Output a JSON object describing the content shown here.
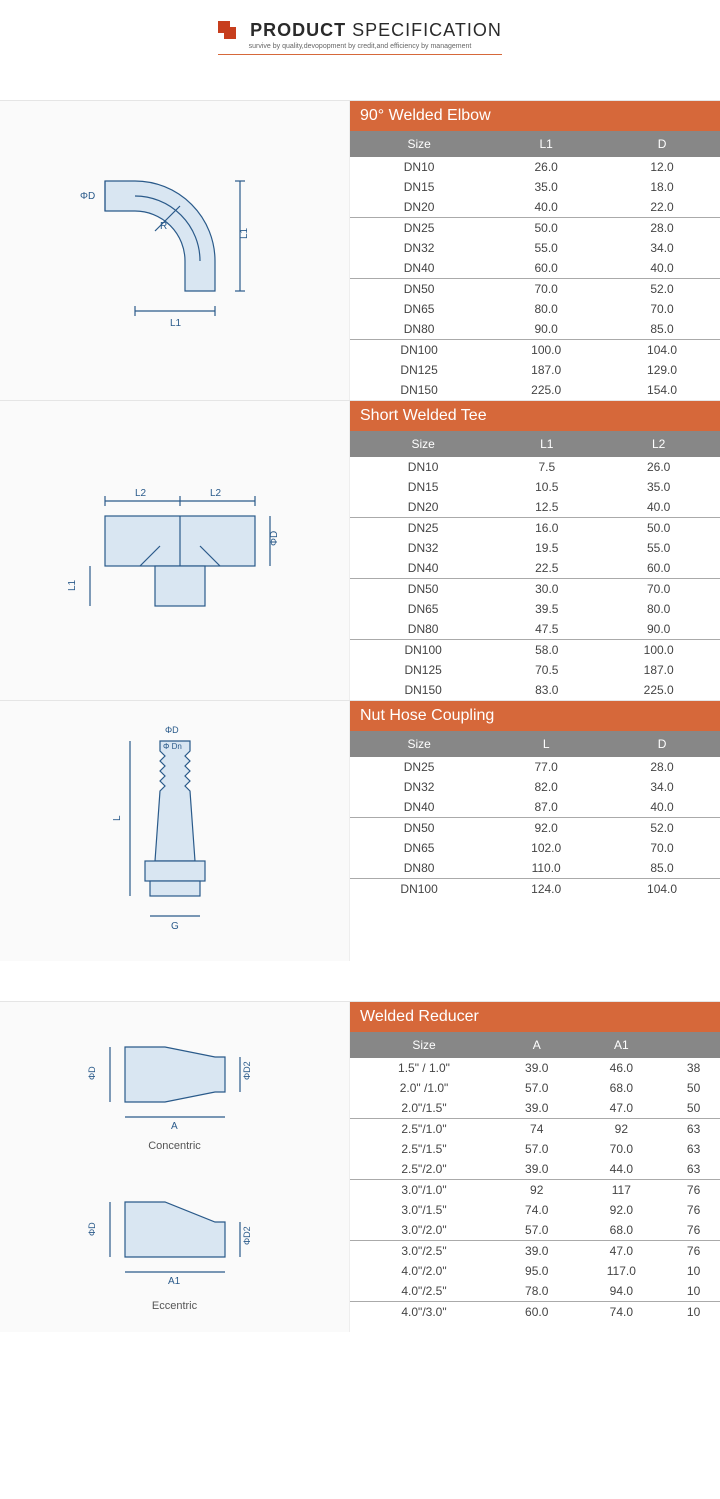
{
  "header": {
    "title_prefix": "PRODUCT",
    "title_suffix": "SPECIFICATION",
    "subtitle": "survive by quality,devopopment by credit,and efficiency by management"
  },
  "sections": [
    {
      "title": "90° Welded Elbow",
      "columns": [
        "Size",
        "L1",
        "D"
      ],
      "groups": [
        [
          [
            "DN10",
            "26.0",
            "12.0"
          ],
          [
            "DN15",
            "35.0",
            "18.0"
          ],
          [
            "DN20",
            "40.0",
            "22.0"
          ]
        ],
        [
          [
            "DN25",
            "50.0",
            "28.0"
          ],
          [
            "DN32",
            "55.0",
            "34.0"
          ],
          [
            "DN40",
            "60.0",
            "40.0"
          ]
        ],
        [
          [
            "DN50",
            "70.0",
            "52.0"
          ],
          [
            "DN65",
            "80.0",
            "70.0"
          ],
          [
            "DN80",
            "90.0",
            "85.0"
          ]
        ],
        [
          [
            "DN100",
            "100.0",
            "104.0"
          ],
          [
            "DN125",
            "187.0",
            "129.0"
          ],
          [
            "DN150",
            "225.0",
            "154.0"
          ]
        ]
      ]
    },
    {
      "title": "Short Welded Tee",
      "columns": [
        "Size",
        "L1",
        "L2"
      ],
      "groups": [
        [
          [
            "DN10",
            "7.5",
            "26.0"
          ],
          [
            "DN15",
            "10.5",
            "35.0"
          ],
          [
            "DN20",
            "12.5",
            "40.0"
          ]
        ],
        [
          [
            "DN25",
            "16.0",
            "50.0"
          ],
          [
            "DN32",
            "19.5",
            "55.0"
          ],
          [
            "DN40",
            "22.5",
            "60.0"
          ]
        ],
        [
          [
            "DN50",
            "30.0",
            "70.0"
          ],
          [
            "DN65",
            "39.5",
            "80.0"
          ],
          [
            "DN80",
            "47.5",
            "90.0"
          ]
        ],
        [
          [
            "DN100",
            "58.0",
            "100.0"
          ],
          [
            "DN125",
            "70.5",
            "187.0"
          ],
          [
            "DN150",
            "83.0",
            "225.0"
          ]
        ]
      ]
    },
    {
      "title": "Nut Hose Coupling",
      "columns": [
        "Size",
        "L",
        "D"
      ],
      "groups": [
        [
          [
            "DN25",
            "77.0",
            "28.0"
          ],
          [
            "DN32",
            "82.0",
            "34.0"
          ],
          [
            "DN40",
            "87.0",
            "40.0"
          ]
        ],
        [
          [
            "DN50",
            "92.0",
            "52.0"
          ],
          [
            "DN65",
            "102.0",
            "70.0"
          ],
          [
            "DN80",
            "110.0",
            "85.0"
          ]
        ],
        [
          [
            "DN100",
            "124.0",
            "104.0"
          ]
        ]
      ]
    },
    {
      "title": "Welded Reducer",
      "columns": [
        "Size",
        "A",
        "A1",
        ""
      ],
      "groups": [
        [
          [
            "1.5\"  / 1.0\"",
            "39.0",
            "46.0",
            "38"
          ],
          [
            "2.0\" /1.0\"",
            "57.0",
            "68.0",
            "50"
          ],
          [
            "2.0\"/1.5\"",
            "39.0",
            "47.0",
            "50"
          ]
        ],
        [
          [
            "2.5\"/1.0\"",
            "74",
            "92",
            "63"
          ],
          [
            "2.5\"/1.5\"",
            "57.0",
            "70.0",
            "63"
          ],
          [
            "2.5\"/2.0\"",
            "39.0",
            "44.0",
            "63"
          ]
        ],
        [
          [
            "3.0\"/1.0\"",
            "92",
            "117",
            "76"
          ],
          [
            "3.0\"/1.5\"",
            "74.0",
            "92.0",
            "76"
          ],
          [
            "3.0\"/2.0\"",
            "57.0",
            "68.0",
            "76"
          ]
        ],
        [
          [
            "3.0\"/2.5\"",
            "39.0",
            "47.0",
            "76"
          ],
          [
            "4.0\"/2.0\"",
            "95.0",
            "117.0",
            "10"
          ],
          [
            "4.0\"/2.5\"",
            "78.0",
            "94.0",
            "10"
          ]
        ],
        [
          [
            "4.0\"/3.0\"",
            "60.0",
            "74.0",
            "10"
          ]
        ]
      ],
      "diagram_labels": [
        "Concentric",
        "Eccentric"
      ]
    }
  ],
  "diagram_labels": {
    "phi_d": "ΦD",
    "phi_dn": "Φ Dn",
    "phi_d2": "ΦD2",
    "l1": "L1",
    "l2": "L2",
    "l": "L",
    "r": "R",
    "g": "G",
    "a": "A",
    "a1": "A1"
  },
  "colors": {
    "accent": "#d6683a",
    "header_gray": "#878787",
    "diagram_stroke": "#2a5a8a",
    "fill_light": "#d9e6f2"
  }
}
